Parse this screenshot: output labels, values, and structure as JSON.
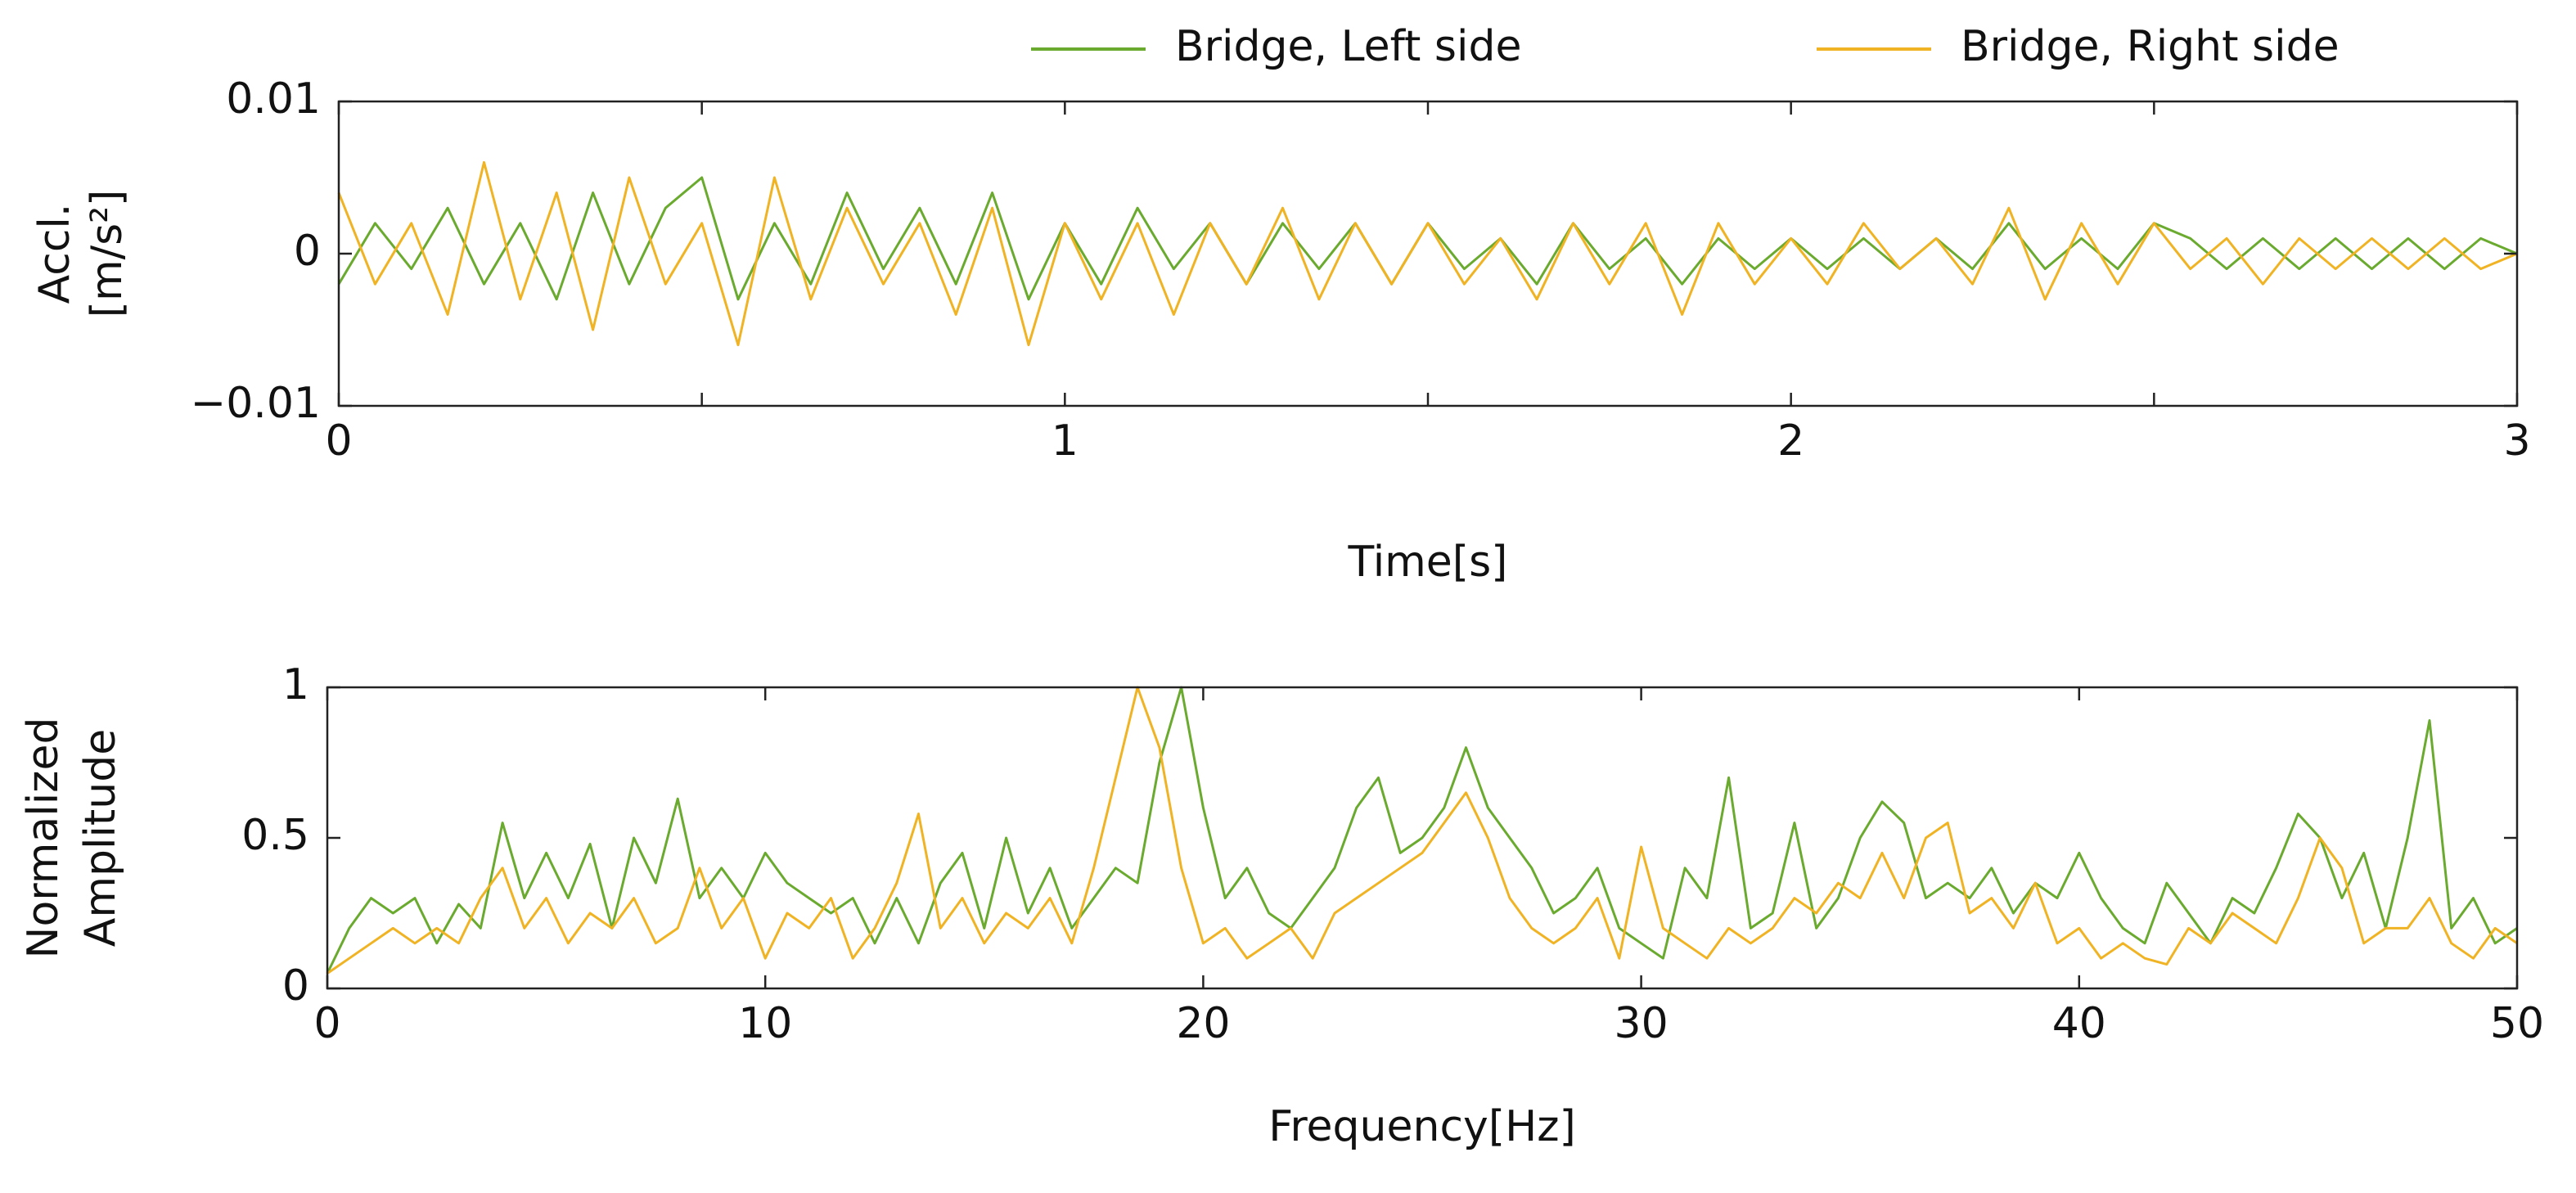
{
  "chart_data": [
    {
      "type": "line",
      "x_label": "Time[s]",
      "y_label": [
        "Accl.",
        "[m/s²]"
      ],
      "xlim": [
        0,
        3
      ],
      "xticks": [
        0,
        1,
        2,
        3
      ],
      "xticks_minor": [
        0.5,
        1.5,
        2.5
      ],
      "ylim": [
        -0.01,
        0.01
      ],
      "yticks": [
        {
          "value": -0.01,
          "label": "−0.01"
        },
        0,
        0.01
      ],
      "grid": false,
      "legend": "top",
      "x": [
        0,
        0.05,
        0.1,
        0.15,
        0.2,
        0.25,
        0.3,
        0.35,
        0.4,
        0.45,
        0.5,
        0.55,
        0.6,
        0.65,
        0.7,
        0.75,
        0.8,
        0.85,
        0.9,
        0.95,
        1,
        1.05,
        1.1,
        1.15,
        1.2,
        1.25,
        1.3,
        1.35,
        1.4,
        1.45,
        1.5,
        1.55,
        1.6,
        1.65,
        1.7,
        1.75,
        1.8,
        1.85,
        1.9,
        1.95,
        2,
        2.05,
        2.1,
        2.15,
        2.2,
        2.25,
        2.3,
        2.35,
        2.4,
        2.45,
        2.5,
        2.55,
        2.6,
        2.65,
        2.7,
        2.75,
        2.8,
        2.85,
        2.9,
        2.95,
        3
      ],
      "series": [
        {
          "name": "Bridge, Left side",
          "color": "#6aaa2e",
          "values": [
            -0.002,
            0.002,
            -0.001,
            0.003,
            -0.002,
            0.002,
            -0.003,
            0.004,
            -0.002,
            0.003,
            0.005,
            -0.003,
            0.002,
            -0.002,
            0.004,
            -0.001,
            0.003,
            -0.002,
            0.004,
            -0.003,
            0.002,
            -0.002,
            0.003,
            -0.001,
            0.002,
            -0.002,
            0.002,
            -0.001,
            0.002,
            -0.002,
            0.002,
            -0.001,
            0.001,
            -0.002,
            0.002,
            -0.001,
            0.001,
            -0.002,
            0.001,
            -0.001,
            0.001,
            -0.001,
            0.001,
            -0.001,
            0.001,
            -0.001,
            0.002,
            -0.001,
            0.001,
            -0.001,
            0.002,
            0.001,
            -0.001,
            0.001,
            -0.001,
            0.001,
            -0.001,
            0.001,
            -0.001,
            0.001,
            0
          ]
        },
        {
          "name": "Bridge, Right side",
          "color": "#f0b323",
          "values": [
            0.004,
            -0.002,
            0.002,
            -0.004,
            0.006,
            -0.003,
            0.004,
            -0.005,
            0.005,
            -0.002,
            0.002,
            -0.006,
            0.005,
            -0.003,
            0.003,
            -0.002,
            0.002,
            -0.004,
            0.003,
            -0.006,
            0.002,
            -0.003,
            0.002,
            -0.004,
            0.002,
            -0.002,
            0.003,
            -0.003,
            0.002,
            -0.002,
            0.002,
            -0.002,
            0.001,
            -0.003,
            0.002,
            -0.002,
            0.002,
            -0.004,
            0.002,
            -0.002,
            0.001,
            -0.002,
            0.002,
            -0.001,
            0.001,
            -0.002,
            0.003,
            -0.003,
            0.002,
            -0.002,
            0.002,
            -0.001,
            0.001,
            -0.002,
            0.001,
            -0.001,
            0.001,
            -0.001,
            0.001,
            -0.001,
            0
          ]
        }
      ]
    },
    {
      "type": "line",
      "x_label": "Frequency[Hz]",
      "y_label": [
        "Normalized",
        "Amplitude"
      ],
      "xlim": [
        0,
        50
      ],
      "xticks": [
        0,
        10,
        20,
        30,
        40,
        50
      ],
      "ylim": [
        0,
        1
      ],
      "yticks": [
        0,
        0.5,
        1
      ],
      "grid": false,
      "x": [
        0,
        0.5,
        1,
        1.5,
        2,
        2.5,
        3,
        3.5,
        4,
        4.5,
        5,
        5.5,
        6,
        6.5,
        7,
        7.5,
        8,
        8.5,
        9,
        9.5,
        10,
        10.5,
        11,
        11.5,
        12,
        12.5,
        13,
        13.5,
        14,
        14.5,
        15,
        15.5,
        16,
        16.5,
        17,
        17.5,
        18,
        18.5,
        19,
        19.5,
        20,
        20.5,
        21,
        21.5,
        22,
        22.5,
        23,
        23.5,
        24,
        24.5,
        25,
        25.5,
        26,
        26.5,
        27,
        27.5,
        28,
        28.5,
        29,
        29.5,
        30,
        30.5,
        31,
        31.5,
        32,
        32.5,
        33,
        33.5,
        34,
        34.5,
        35,
        35.5,
        36,
        36.5,
        37,
        37.5,
        38,
        38.5,
        39,
        39.5,
        40,
        40.5,
        41,
        41.5,
        42,
        42.5,
        43,
        43.5,
        44,
        44.5,
        45,
        45.5,
        46,
        46.5,
        47,
        47.5,
        48,
        48.5,
        49,
        49.5,
        50
      ],
      "series": [
        {
          "color": "#6aaa2e",
          "values": [
            0.05,
            0.2,
            0.3,
            0.25,
            0.3,
            0.15,
            0.28,
            0.2,
            0.55,
            0.3,
            0.45,
            0.3,
            0.48,
            0.2,
            0.5,
            0.35,
            0.63,
            0.3,
            0.4,
            0.3,
            0.45,
            0.35,
            0.3,
            0.25,
            0.3,
            0.15,
            0.3,
            0.15,
            0.35,
            0.45,
            0.2,
            0.5,
            0.25,
            0.4,
            0.2,
            0.3,
            0.4,
            0.35,
            0.75,
            1.0,
            0.6,
            0.3,
            0.4,
            0.25,
            0.2,
            0.3,
            0.4,
            0.6,
            0.7,
            0.45,
            0.5,
            0.6,
            0.8,
            0.6,
            0.5,
            0.4,
            0.25,
            0.3,
            0.4,
            0.2,
            0.15,
            0.1,
            0.4,
            0.3,
            0.7,
            0.2,
            0.25,
            0.55,
            0.2,
            0.3,
            0.5,
            0.62,
            0.55,
            0.3,
            0.35,
            0.3,
            0.4,
            0.25,
            0.35,
            0.3,
            0.45,
            0.3,
            0.2,
            0.15,
            0.35,
            0.25,
            0.15,
            0.3,
            0.25,
            0.4,
            0.58,
            0.5,
            0.3,
            0.45,
            0.2,
            0.5,
            0.89,
            0.2,
            0.3,
            0.15,
            0.2
          ]
        },
        {
          "color": "#f0b323",
          "values": [
            0.05,
            0.1,
            0.15,
            0.2,
            0.15,
            0.2,
            0.15,
            0.3,
            0.4,
            0.2,
            0.3,
            0.15,
            0.25,
            0.2,
            0.3,
            0.15,
            0.2,
            0.4,
            0.2,
            0.3,
            0.1,
            0.25,
            0.2,
            0.3,
            0.1,
            0.2,
            0.35,
            0.58,
            0.2,
            0.3,
            0.15,
            0.25,
            0.2,
            0.3,
            0.15,
            0.4,
            0.7,
            1.0,
            0.8,
            0.4,
            0.15,
            0.2,
            0.1,
            0.15,
            0.2,
            0.1,
            0.25,
            0.3,
            0.35,
            0.4,
            0.45,
            0.55,
            0.65,
            0.5,
            0.3,
            0.2,
            0.15,
            0.2,
            0.3,
            0.1,
            0.47,
            0.2,
            0.15,
            0.1,
            0.2,
            0.15,
            0.2,
            0.3,
            0.25,
            0.35,
            0.3,
            0.45,
            0.3,
            0.5,
            0.55,
            0.25,
            0.3,
            0.2,
            0.35,
            0.15,
            0.2,
            0.1,
            0.15,
            0.1,
            0.08,
            0.2,
            0.15,
            0.25,
            0.2,
            0.15,
            0.3,
            0.5,
            0.4,
            0.15,
            0.2,
            0.2,
            0.3,
            0.15,
            0.1,
            0.2,
            0.15
          ]
        }
      ]
    }
  ]
}
